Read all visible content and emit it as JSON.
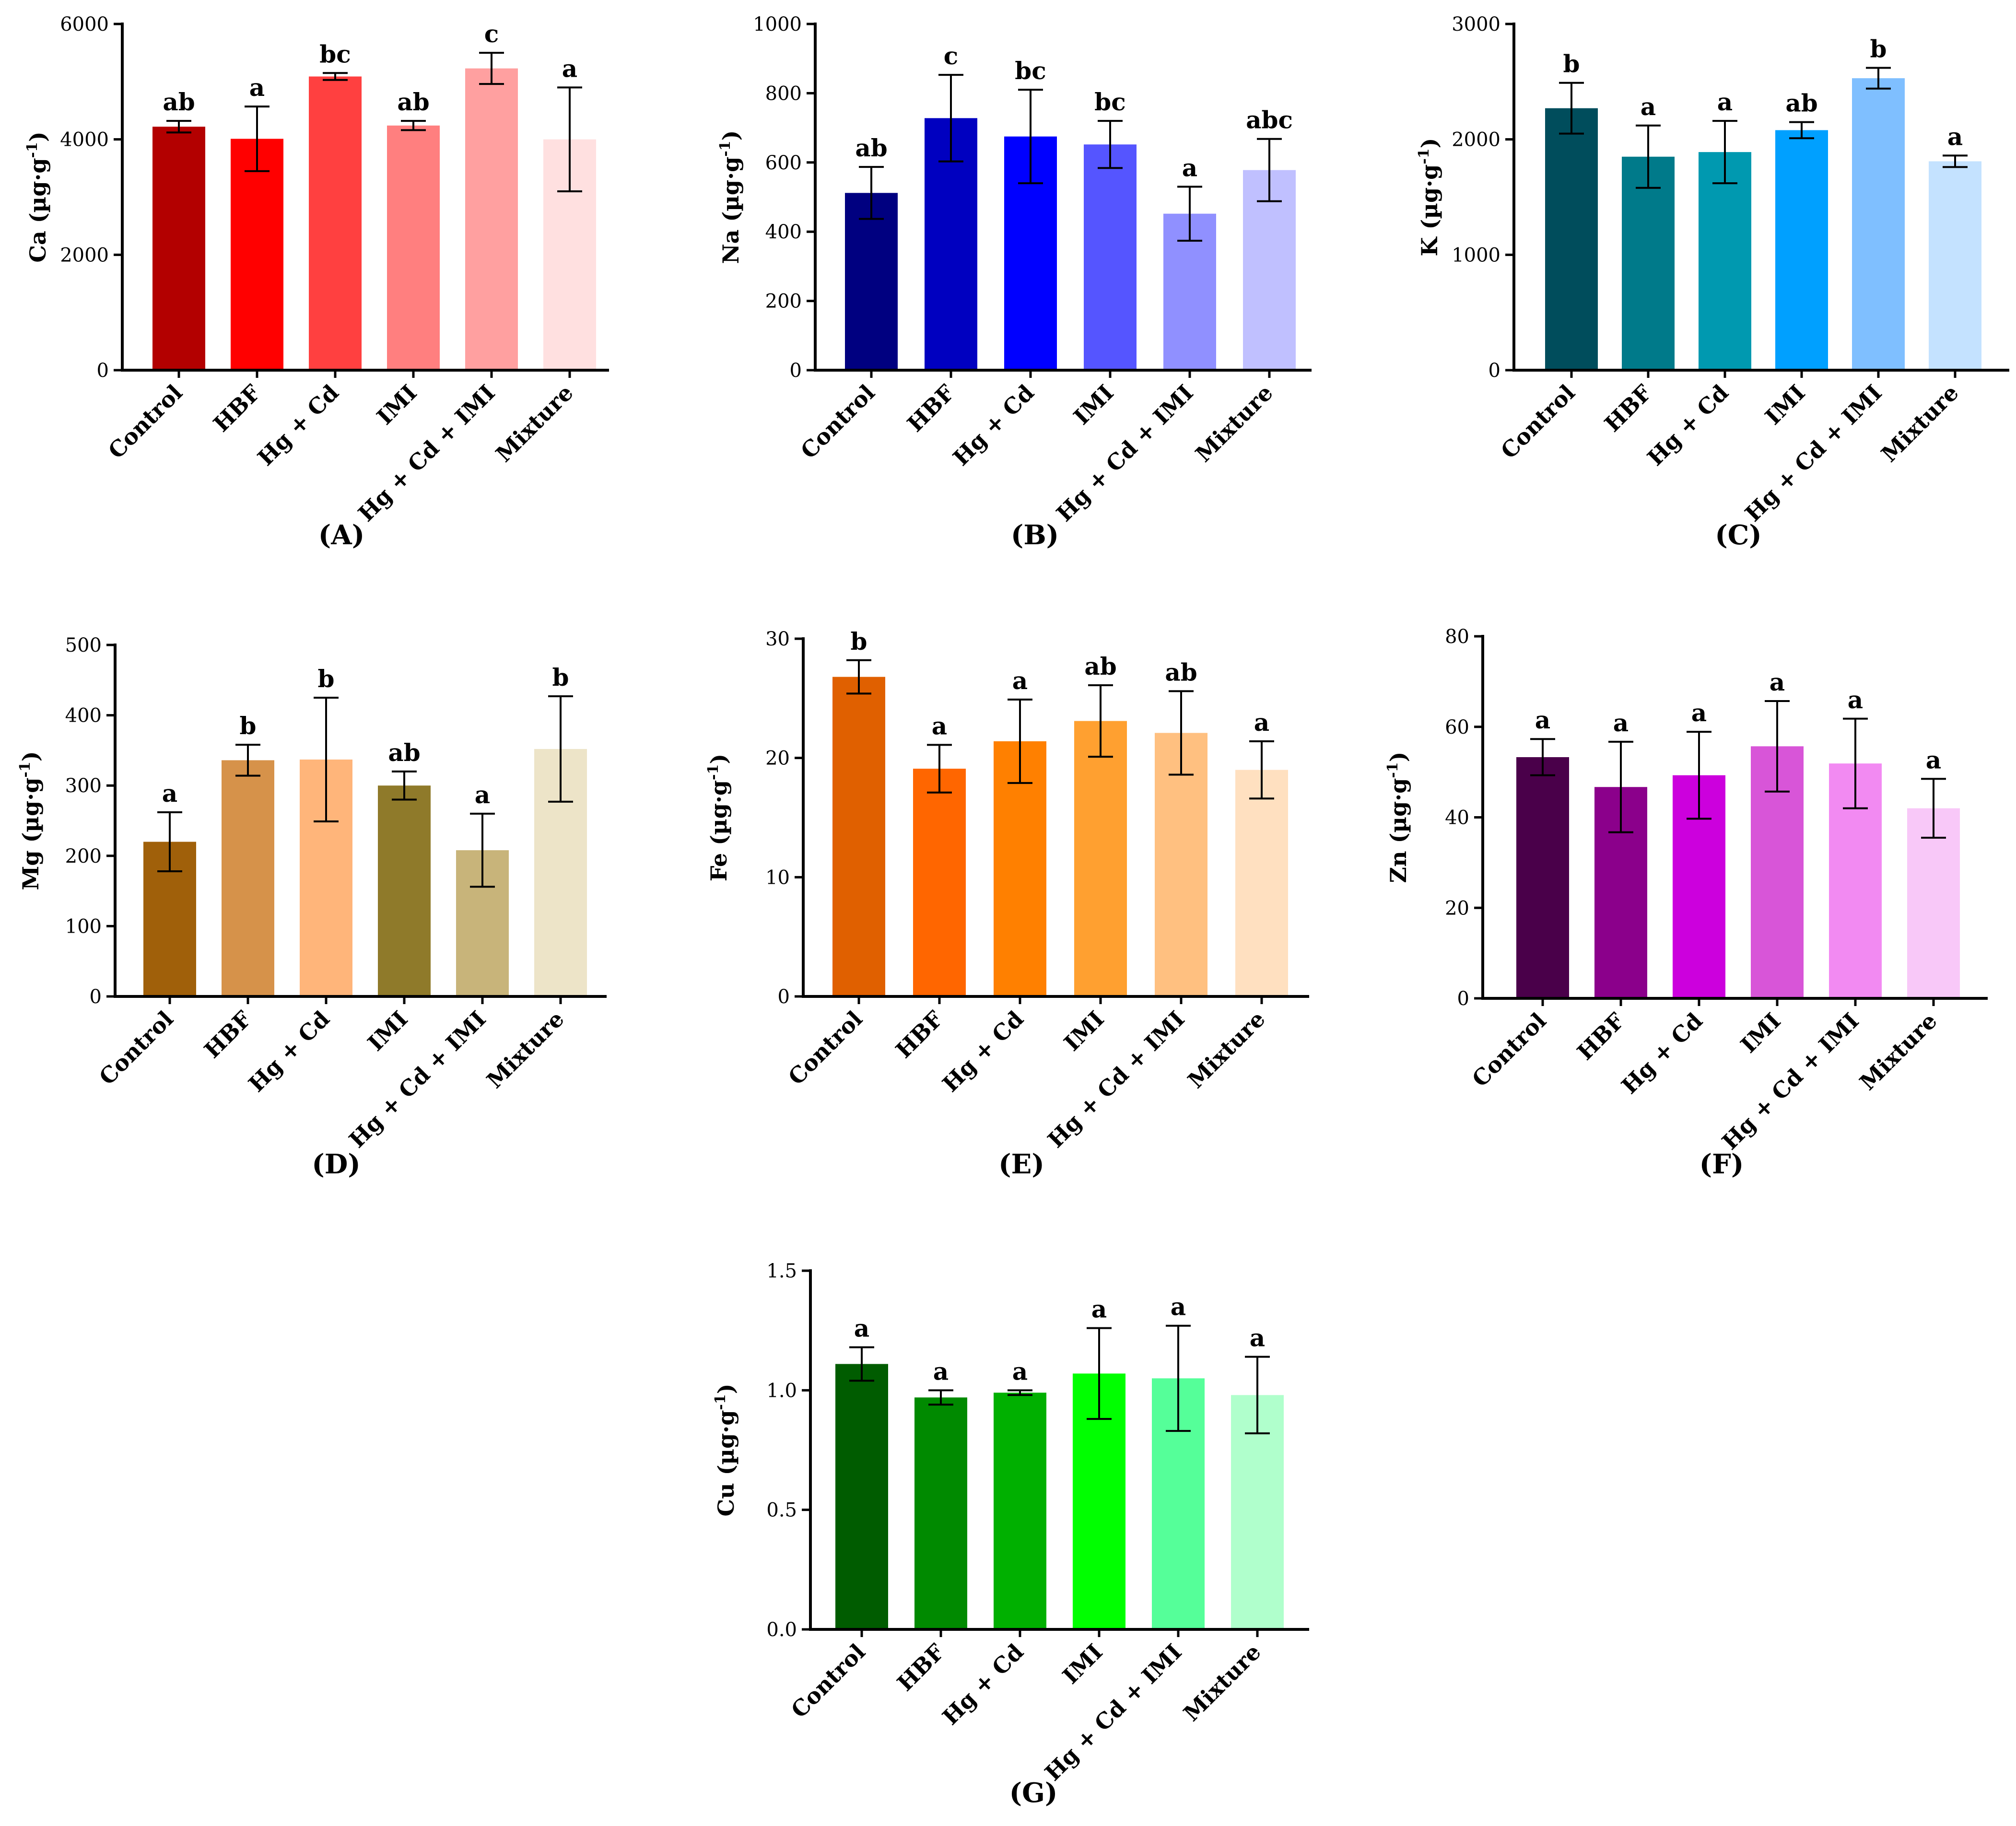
{
  "chart_data": [
    {
      "type": "bar",
      "panel": "(A)",
      "element": "Ca",
      "unit": "(µg·g",
      "unit_exp": "-1",
      "unit_close": ")",
      "categories": [
        "Control",
        "HBF",
        "Hg + Cd",
        "IMI",
        "Hg + Cd + IMI",
        "Mixture"
      ],
      "values": [
        4220,
        4010,
        5090,
        4240,
        5230,
        4000
      ],
      "errors": [
        100,
        560,
        60,
        80,
        270,
        900
      ],
      "significance": [
        "ab",
        "a",
        "bc",
        "ab",
        "c",
        "a"
      ],
      "colors": [
        "#b30000",
        "#ff0000",
        "#ff4040",
        "#ff7f7f",
        "#ffa0a0",
        "#ffe0e0"
      ],
      "ylim": [
        0,
        6000
      ],
      "yticks": [
        "0",
        "2000",
        "4000",
        "6000"
      ]
    },
    {
      "type": "bar",
      "panel": "(B)",
      "element": "Na",
      "unit": "(µg·g",
      "unit_exp": "-1",
      "unit_close": ")",
      "categories": [
        "Control",
        "HBF",
        "Hg + Cd",
        "IMI",
        "Hg + Cd + IMI",
        "Mixture"
      ],
      "values": [
        512,
        728,
        675,
        652,
        452,
        578
      ],
      "errors": [
        75,
        125,
        135,
        68,
        78,
        90
      ],
      "significance": [
        "ab",
        "c",
        "bc",
        "bc",
        "a",
        "abc"
      ],
      "colors": [
        "#000080",
        "#0000c0",
        "#0000ff",
        "#5555ff",
        "#9090ff",
        "#c0c0ff"
      ],
      "ylim": [
        0,
        1000
      ],
      "yticks": [
        "0",
        "200",
        "400",
        "600",
        "800",
        "1000"
      ]
    },
    {
      "type": "bar",
      "panel": "(C)",
      "element": "K",
      "unit": "(µg·g",
      "unit_exp": "-1",
      "unit_close": ")",
      "categories": [
        "Control",
        "HBF",
        "Hg + Cd",
        "IMI",
        "Hg + Cd + IMI",
        "Mixture"
      ],
      "values": [
        2270,
        1850,
        1890,
        2080,
        2530,
        1810
      ],
      "errors": [
        220,
        270,
        270,
        70,
        90,
        50
      ],
      "significance": [
        "b",
        "a",
        "a",
        "ab",
        "b",
        "a"
      ],
      "colors": [
        "#004d5c",
        "#007a8a",
        "#0099b0",
        "#00a0ff",
        "#7fbfff",
        "#c4e2ff"
      ],
      "ylim": [
        0,
        3000
      ],
      "yticks": [
        "0",
        "1000",
        "2000",
        "3000"
      ]
    },
    {
      "type": "bar",
      "panel": "(D)",
      "element": "Mg",
      "unit": "(µg·g",
      "unit_exp": "-1",
      "unit_close": ")",
      "categories": [
        "Control",
        "HBF",
        "Hg + Cd",
        "IMI",
        "Hg + Cd + IMI",
        "Mixture"
      ],
      "values": [
        220,
        336,
        337,
        300,
        208,
        352
      ],
      "errors": [
        42,
        22,
        88,
        20,
        52,
        75
      ],
      "significance": [
        "a",
        "b",
        "b",
        "ab",
        "a",
        "b"
      ],
      "colors": [
        "#a0600a",
        "#d6924a",
        "#ffb57a",
        "#8f7a2a",
        "#c8b47a",
        "#ede4c8"
      ],
      "ylim": [
        0,
        500
      ],
      "yticks": [
        "0",
        "100",
        "200",
        "300",
        "400",
        "500"
      ]
    },
    {
      "type": "bar",
      "panel": "(E)",
      "element": "Fe",
      "unit": "(µg·g",
      "unit_exp": "-1",
      "unit_close": ")",
      "categories": [
        "Control",
        "HBF",
        "Hg + Cd",
        "IMI",
        "Hg + Cd + IMI",
        "Mixture"
      ],
      "values": [
        26.8,
        19.1,
        21.4,
        23.1,
        22.1,
        19.0
      ],
      "errors": [
        1.4,
        2.0,
        3.5,
        3.0,
        3.5,
        2.4
      ],
      "significance": [
        "b",
        "a",
        "a",
        "ab",
        "ab",
        "a"
      ],
      "colors": [
        "#e06000",
        "#ff6600",
        "#ff8000",
        "#ffa030",
        "#ffc080",
        "#ffe0c0"
      ],
      "ylim": [
        0,
        30
      ],
      "yticks": [
        "0",
        "10",
        "20",
        "30"
      ]
    },
    {
      "type": "bar",
      "panel": "(F)",
      "element": "Zn",
      "unit": "(µg·g",
      "unit_exp": "-1",
      "unit_close": ")",
      "categories": [
        "Control",
        "HBF",
        "Hg + Cd",
        "IMI",
        "Hg + Cd + IMI",
        "Mixture"
      ],
      "values": [
        53.3,
        46.7,
        49.3,
        55.7,
        51.9,
        42.0
      ],
      "errors": [
        4.0,
        10.0,
        9.6,
        10.0,
        9.9,
        6.5
      ],
      "significance": [
        "a",
        "a",
        "a",
        "a",
        "a",
        "a"
      ],
      "colors": [
        "#4a004a",
        "#8b008b",
        "#cc00dd",
        "#d855d8",
        "#f28af2",
        "#f8c8f8"
      ],
      "ylim": [
        0,
        80
      ],
      "yticks": [
        "0",
        "20",
        "40",
        "60",
        "80"
      ]
    },
    {
      "type": "bar",
      "panel": "(G)",
      "element": "Cu",
      "unit": "(µg·g",
      "unit_exp": "-1",
      "unit_close": ")",
      "categories": [
        "Control",
        "HBF",
        "Hg + Cd",
        "IMI",
        "Hg + Cd + IMI",
        "Mixture"
      ],
      "values": [
        1.11,
        0.97,
        0.99,
        1.07,
        1.05,
        0.98
      ],
      "errors": [
        0.07,
        0.03,
        0.01,
        0.19,
        0.22,
        0.16
      ],
      "significance": [
        "a",
        "a",
        "a",
        "a",
        "a",
        "a"
      ],
      "colors": [
        "#005c00",
        "#008a00",
        "#00b000",
        "#00ff00",
        "#55ff99",
        "#b0ffcc"
      ],
      "ylim": [
        0,
        1.5
      ],
      "yticks": [
        "0.0",
        "0.5",
        "1.0",
        "1.5"
      ]
    }
  ]
}
